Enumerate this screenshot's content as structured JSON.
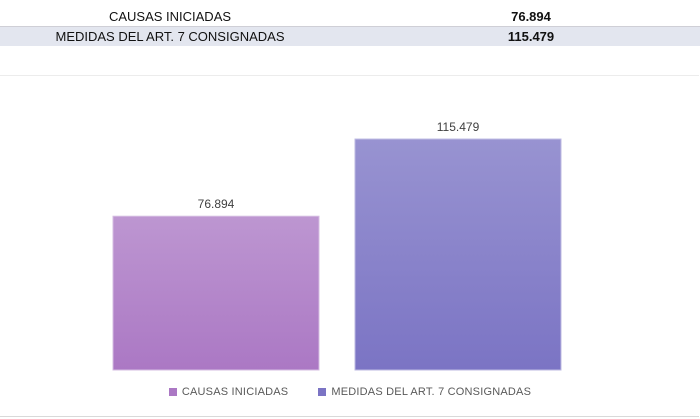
{
  "table": {
    "rows": [
      {
        "label": "CAUSAS INICIADAS",
        "value": "76.894"
      },
      {
        "label": "MEDIDAS DEL ART. 7 CONSIGNADAS",
        "value": "115.479"
      }
    ]
  },
  "chart_data": {
    "type": "bar",
    "categories": [
      "CAUSAS INICIADAS",
      "MEDIDAS DEL ART. 7 CONSIGNADAS"
    ],
    "values": [
      76894,
      115479
    ],
    "value_labels": [
      "76.894",
      "115.479"
    ],
    "colors": [
      "#ab78c4",
      "#7b74c4"
    ],
    "title": "",
    "xlabel": "",
    "ylabel": "",
    "ylim": [
      0,
      130000
    ],
    "grid": false,
    "legend": "bottom",
    "legend_entries": [
      "CAUSAS INICIADAS",
      "MEDIDAS DEL ART. 7 CONSIGNADAS"
    ]
  }
}
